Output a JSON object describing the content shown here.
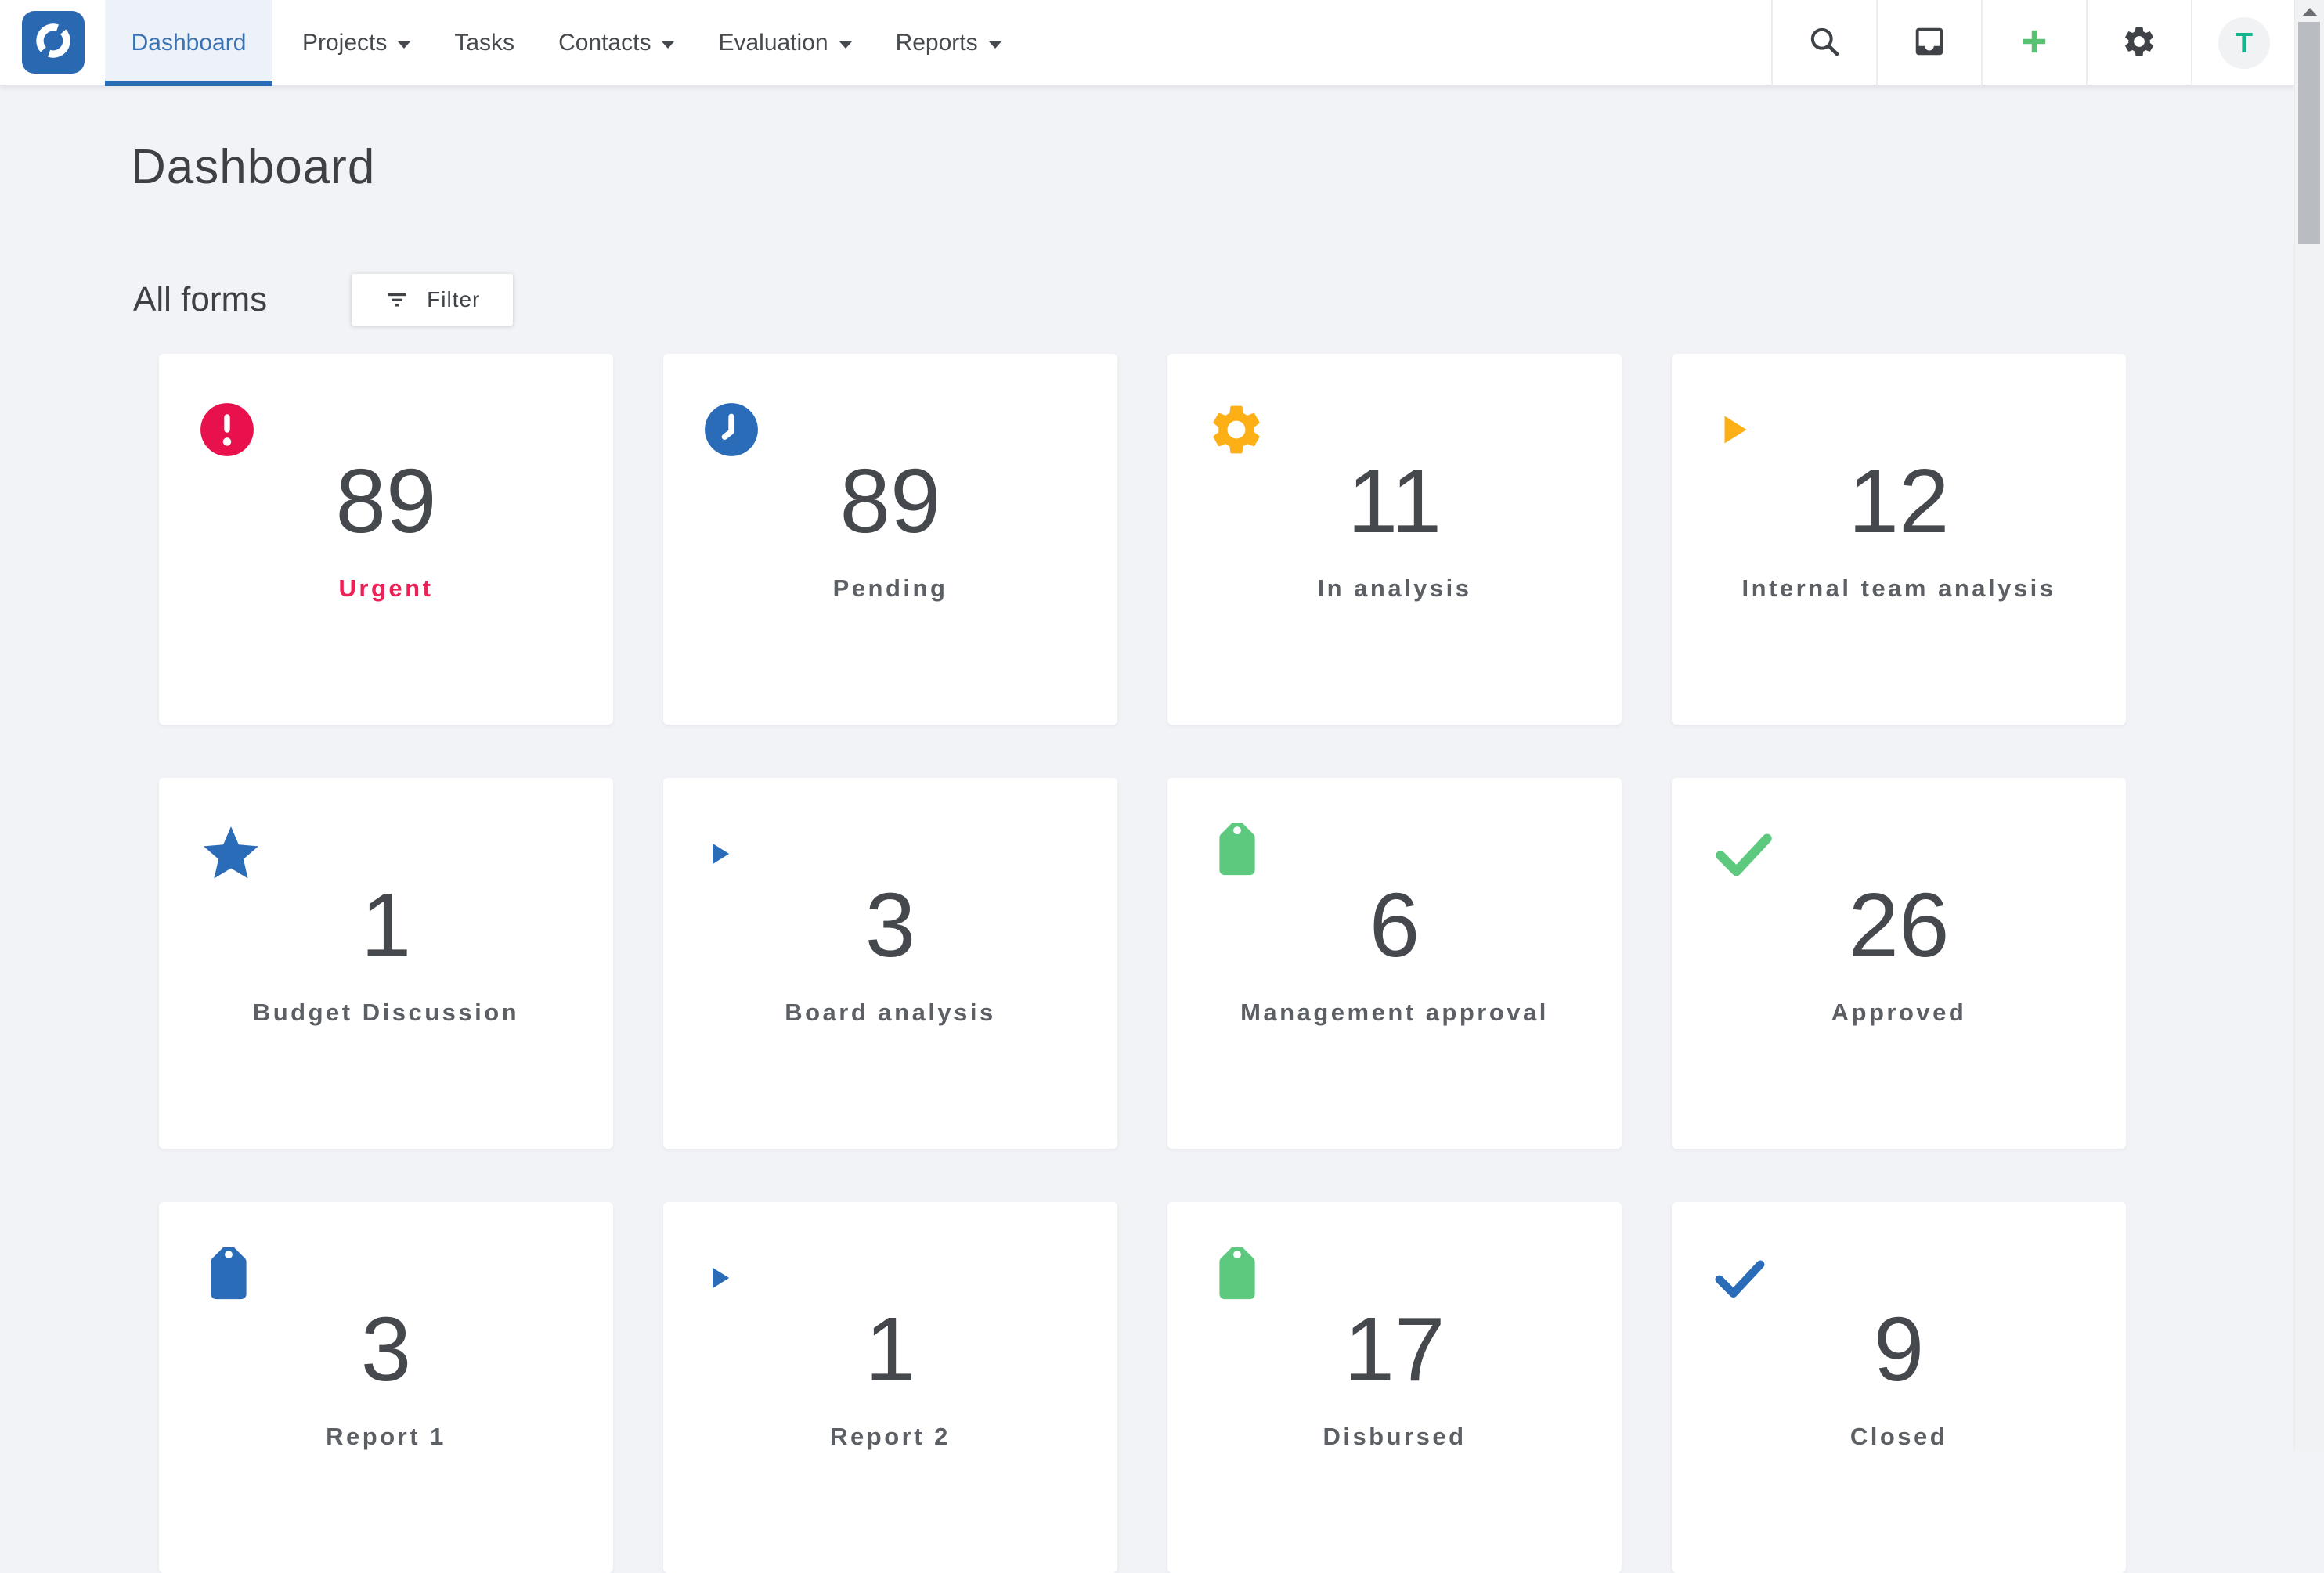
{
  "nav": {
    "brand": "app-logo",
    "active_tab": {
      "label": "Dashboard"
    },
    "menu": [
      {
        "label": "Projects",
        "caret": true
      },
      {
        "label": "Tasks",
        "caret": false
      },
      {
        "label": "Contacts",
        "caret": true
      },
      {
        "label": "Evaluation",
        "caret": true
      },
      {
        "label": "Reports",
        "caret": true
      }
    ],
    "actions": [
      {
        "name": "search-icon"
      },
      {
        "name": "inbox-icon"
      },
      {
        "name": "add-icon"
      },
      {
        "name": "settings-icon"
      }
    ],
    "avatar_initial": "T"
  },
  "page": {
    "title": "Dashboard",
    "section_title": "All forms",
    "filter_label": "Filter"
  },
  "cards": [
    {
      "value": "89",
      "label": "Urgent",
      "icon": "alert-circle",
      "accent": "#e8114d",
      "label_color": "#ee2058"
    },
    {
      "value": "89",
      "label": "Pending",
      "icon": "clock-circle",
      "accent": "#2a6cb7"
    },
    {
      "value": "11",
      "label": "In analysis",
      "icon": "gear",
      "accent": "#fcb016"
    },
    {
      "value": "12",
      "label": "Internal team analysis",
      "icon": "play",
      "accent": "#fcb016"
    },
    {
      "value": "1",
      "label": "Budget Discussion",
      "icon": "star",
      "accent": "#2a6cb7"
    },
    {
      "value": "3",
      "label": "Board analysis",
      "icon": "play-sm",
      "accent": "#2a6cb7"
    },
    {
      "value": "6",
      "label": "Management approval",
      "icon": "tag",
      "accent": "#5dc97e"
    },
    {
      "value": "26",
      "label": "Approved",
      "icon": "check",
      "accent": "#5dc97e"
    },
    {
      "value": "3",
      "label": "Report 1",
      "icon": "tag",
      "accent": "#2a6cb7"
    },
    {
      "value": "1",
      "label": "Report 2",
      "icon": "play-sm",
      "accent": "#2a6cb7"
    },
    {
      "value": "17",
      "label": "Disbursed",
      "icon": "tag",
      "accent": "#5dc97e"
    },
    {
      "value": "9",
      "label": "Closed",
      "icon": "check-sm",
      "accent": "#2a6cb7"
    }
  ],
  "colors": {
    "page_bg": "#f1f3f7",
    "nav_bg": "#ffffff",
    "brand_blue": "#2a68b2",
    "active_tab_bg": "#edf2f9",
    "active_tab_text": "#3a72b4",
    "tab_underline": "#2a6bb5",
    "urgent_red": "#e8114d",
    "status_blue": "#2a6cb7",
    "status_amber": "#fcb016",
    "status_green": "#5dc97e",
    "add_green": "#57c271",
    "avatar_teal": "#15b48e",
    "number_text": "#45484c",
    "label_text": "#5c6065"
  }
}
